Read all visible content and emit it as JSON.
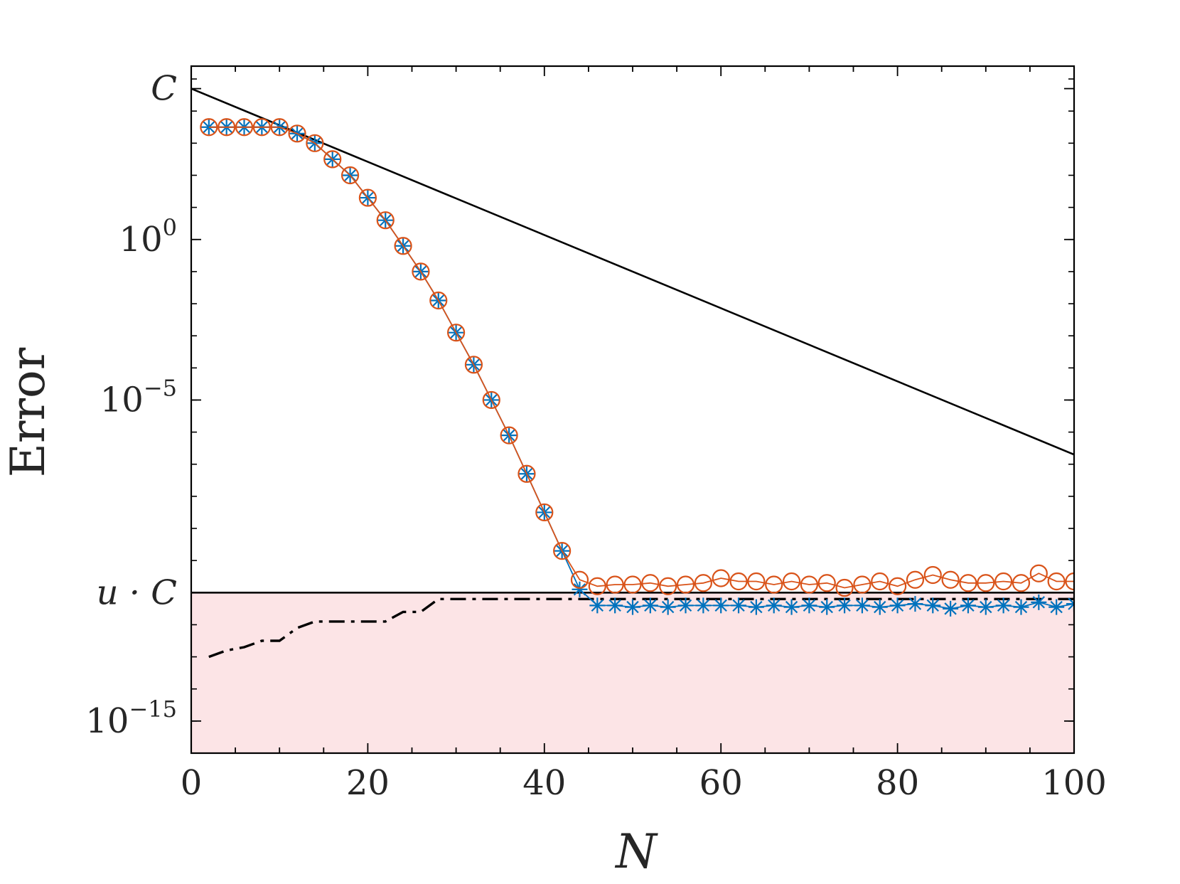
{
  "chart_data": {
    "type": "line",
    "xlabel": "N",
    "ylabel": "Error",
    "xlim": [
      0,
      100
    ],
    "ylim_log10": [
      -16,
      5.4
    ],
    "y_scale": "log",
    "grid": false,
    "x_ticks": [
      0,
      20,
      40,
      60,
      80,
      100
    ],
    "x_tick_labels": [
      "0",
      "20",
      "40",
      "60",
      "80",
      "100"
    ],
    "y_ticks": [
      {
        "log10": 4.7,
        "base": "C",
        "exp": ""
      },
      {
        "log10": 0,
        "base": "10",
        "exp": "0"
      },
      {
        "log10": -5,
        "base": "10",
        "exp": "−5"
      },
      {
        "log10": -11,
        "base": "u · C",
        "exp": ""
      },
      {
        "log10": -15,
        "base": "10",
        "exp": "−15"
      }
    ],
    "shaded_region": {
      "from_log10": -16,
      "to_log10": -11,
      "color": "#fce4e6"
    },
    "colors": {
      "blue": "#0072bd",
      "orange": "#d95319",
      "black": "#000000"
    },
    "series": [
      {
        "style": "solid-black",
        "x": [
          0,
          100
        ],
        "y_log10": [
          4.7,
          -6.7
        ]
      },
      {
        "style": "horizontal-black",
        "x": [
          0,
          100
        ],
        "y_log10": [
          -11,
          -11
        ]
      },
      {
        "style": "dash-dot-black",
        "x": [
          2,
          4,
          6,
          8,
          10,
          12,
          14,
          16,
          18,
          20,
          22,
          24,
          26,
          28,
          30,
          32,
          34,
          36,
          38,
          40,
          42,
          44,
          46,
          48,
          50,
          52,
          54,
          56,
          58,
          60,
          62,
          64,
          66,
          68,
          70,
          72,
          74,
          76,
          78,
          80,
          82,
          84,
          86,
          88,
          90,
          92,
          94,
          96,
          98,
          100
        ],
        "y_log10": [
          -13.0,
          -12.8,
          -12.7,
          -12.5,
          -12.5,
          -12.1,
          -11.9,
          -11.9,
          -11.9,
          -11.9,
          -11.9,
          -11.6,
          -11.6,
          -11.2,
          -11.2,
          -11.2,
          -11.2,
          -11.2,
          -11.2,
          -11.2,
          -11.2,
          -11.2,
          -11.2,
          -11.2,
          -11.2,
          -11.2,
          -11.2,
          -11.2,
          -11.2,
          -11.2,
          -11.2,
          -11.2,
          -11.2,
          -11.2,
          -11.2,
          -11.2,
          -11.2,
          -11.2,
          -11.2,
          -11.2,
          -11.2,
          -11.2,
          -11.2,
          -11.2,
          -11.2,
          -11.2,
          -11.2,
          -11.2,
          -11.2,
          -11.2
        ]
      },
      {
        "style": "blue-star",
        "x": [
          2,
          4,
          6,
          8,
          10,
          12,
          14,
          16,
          18,
          20,
          22,
          24,
          26,
          28,
          30,
          32,
          34,
          36,
          38,
          40,
          42,
          44,
          46,
          48,
          50,
          52,
          54,
          56,
          58,
          60,
          62,
          64,
          66,
          68,
          70,
          72,
          74,
          76,
          78,
          80,
          82,
          84,
          86,
          88,
          90,
          92,
          94,
          96,
          98,
          100
        ],
        "y_log10": [
          3.5,
          3.5,
          3.5,
          3.5,
          3.5,
          3.3,
          3.0,
          2.5,
          2.0,
          1.3,
          0.6,
          -0.2,
          -1.0,
          -1.9,
          -2.9,
          -3.9,
          -5.0,
          -6.1,
          -7.3,
          -8.5,
          -9.7,
          -10.9,
          -11.4,
          -11.4,
          -11.45,
          -11.4,
          -11.45,
          -11.4,
          -11.4,
          -11.4,
          -11.4,
          -11.45,
          -11.4,
          -11.45,
          -11.4,
          -11.45,
          -11.4,
          -11.4,
          -11.45,
          -11.4,
          -11.35,
          -11.4,
          -11.5,
          -11.4,
          -11.45,
          -11.4,
          -11.45,
          -11.3,
          -11.45,
          -11.35
        ]
      },
      {
        "style": "orange-circle",
        "x": [
          2,
          4,
          6,
          8,
          10,
          12,
          14,
          16,
          18,
          20,
          22,
          24,
          26,
          28,
          30,
          32,
          34,
          36,
          38,
          40,
          42,
          44,
          46,
          48,
          50,
          52,
          54,
          56,
          58,
          60,
          62,
          64,
          66,
          68,
          70,
          72,
          74,
          76,
          78,
          80,
          82,
          84,
          86,
          88,
          90,
          92,
          94,
          96,
          98,
          100
        ],
        "y_log10": [
          3.5,
          3.5,
          3.5,
          3.5,
          3.5,
          3.3,
          3.0,
          2.5,
          2.0,
          1.3,
          0.6,
          -0.2,
          -1.0,
          -1.9,
          -2.9,
          -3.9,
          -5.0,
          -6.1,
          -7.3,
          -8.5,
          -9.7,
          -10.6,
          -10.8,
          -10.75,
          -10.75,
          -10.7,
          -10.8,
          -10.75,
          -10.7,
          -10.55,
          -10.65,
          -10.65,
          -10.75,
          -10.65,
          -10.75,
          -10.7,
          -10.85,
          -10.75,
          -10.65,
          -10.8,
          -10.6,
          -10.45,
          -10.6,
          -10.7,
          -10.7,
          -10.65,
          -10.7,
          -10.4,
          -10.65,
          -10.65
        ]
      }
    ]
  }
}
